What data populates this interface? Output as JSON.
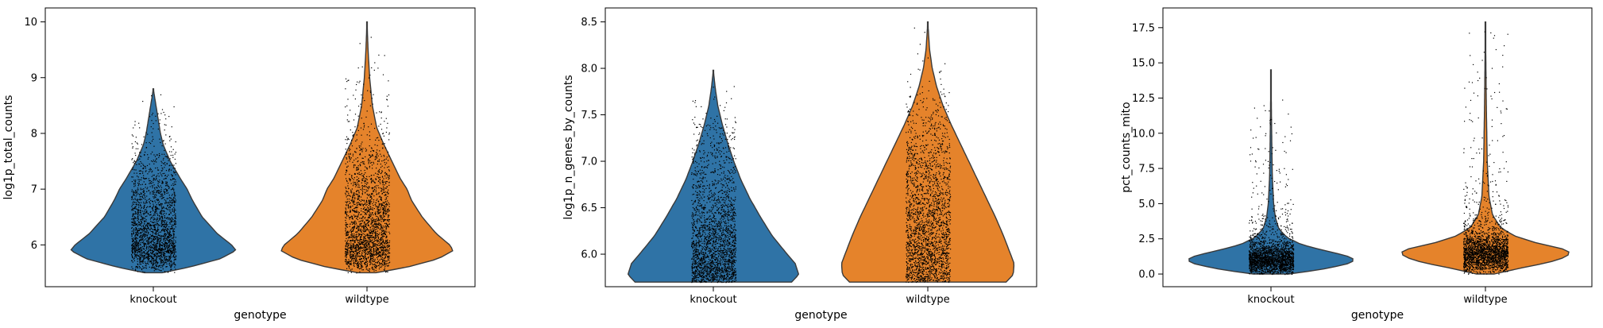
{
  "chart_data": [
    {
      "type": "violin",
      "xlabel": "genotype",
      "ylabel": "log1p_total_counts",
      "categories": [
        "knockout",
        "wildtype"
      ],
      "colors": [
        "#2f73a6",
        "#e5832b"
      ],
      "ylim": [
        5.25,
        10.25
      ],
      "yticks": [
        {
          "value": 6,
          "label": "6"
        },
        {
          "value": 7,
          "label": "7"
        },
        {
          "value": 8,
          "label": "8"
        },
        {
          "value": 9,
          "label": "9"
        },
        {
          "value": 10,
          "label": "10"
        }
      ],
      "series": [
        {
          "category": "knockout",
          "min": 5.5,
          "max": 8.8,
          "jitter_max": 8.7,
          "profile": [
            [
              5.5,
              0.1
            ],
            [
              5.6,
              0.4
            ],
            [
              5.75,
              0.75
            ],
            [
              5.9,
              0.93
            ],
            [
              6.0,
              0.88
            ],
            [
              6.2,
              0.72
            ],
            [
              6.5,
              0.55
            ],
            [
              6.8,
              0.44
            ],
            [
              7.0,
              0.38
            ],
            [
              7.2,
              0.3
            ],
            [
              7.5,
              0.19
            ],
            [
              7.8,
              0.11
            ],
            [
              8.0,
              0.08
            ],
            [
              8.3,
              0.05
            ],
            [
              8.6,
              0.02
            ],
            [
              8.8,
              0.0
            ]
          ]
        },
        {
          "category": "wildtype",
          "min": 5.5,
          "max": 10.0,
          "jitter_max": 9.9,
          "profile": [
            [
              5.5,
              0.1
            ],
            [
              5.6,
              0.45
            ],
            [
              5.75,
              0.8
            ],
            [
              5.9,
              0.97
            ],
            [
              6.0,
              0.93
            ],
            [
              6.2,
              0.78
            ],
            [
              6.5,
              0.62
            ],
            [
              6.8,
              0.5
            ],
            [
              7.0,
              0.45
            ],
            [
              7.2,
              0.37
            ],
            [
              7.5,
              0.28
            ],
            [
              7.8,
              0.19
            ],
            [
              8.1,
              0.11
            ],
            [
              8.5,
              0.06
            ],
            [
              9.0,
              0.03
            ],
            [
              9.5,
              0.012
            ],
            [
              10.0,
              0.0
            ]
          ]
        }
      ]
    },
    {
      "type": "violin",
      "xlabel": "genotype",
      "ylabel": "log1p_n_genes_by_counts",
      "categories": [
        "knockout",
        "wildtype"
      ],
      "colors": [
        "#2f73a6",
        "#e5832b"
      ],
      "ylim": [
        5.65,
        8.65
      ],
      "yticks": [
        {
          "value": 6.0,
          "label": "6.0"
        },
        {
          "value": 6.5,
          "label": "6.5"
        },
        {
          "value": 7.0,
          "label": "7.0"
        },
        {
          "value": 7.5,
          "label": "7.5"
        },
        {
          "value": 8.0,
          "label": "8.0"
        },
        {
          "value": 8.5,
          "label": "8.5"
        }
      ],
      "series": [
        {
          "category": "knockout",
          "min": 5.7,
          "max": 7.98,
          "jitter_max": 7.9,
          "profile": [
            [
              5.7,
              0.88
            ],
            [
              5.78,
              0.96
            ],
            [
              5.9,
              0.92
            ],
            [
              6.0,
              0.83
            ],
            [
              6.2,
              0.66
            ],
            [
              6.4,
              0.53
            ],
            [
              6.6,
              0.41
            ],
            [
              6.8,
              0.31
            ],
            [
              7.0,
              0.23
            ],
            [
              7.2,
              0.16
            ],
            [
              7.4,
              0.1
            ],
            [
              7.6,
              0.05
            ],
            [
              7.8,
              0.02
            ],
            [
              7.98,
              0.0
            ]
          ]
        },
        {
          "category": "wildtype",
          "min": 5.7,
          "max": 8.5,
          "jitter_max": 8.45,
          "profile": [
            [
              5.7,
              0.88
            ],
            [
              5.78,
              0.96
            ],
            [
              5.9,
              0.97
            ],
            [
              6.0,
              0.93
            ],
            [
              6.2,
              0.85
            ],
            [
              6.4,
              0.76
            ],
            [
              6.6,
              0.66
            ],
            [
              6.8,
              0.56
            ],
            [
              7.0,
              0.46
            ],
            [
              7.2,
              0.36
            ],
            [
              7.4,
              0.26
            ],
            [
              7.6,
              0.17
            ],
            [
              7.8,
              0.1
            ],
            [
              8.0,
              0.05
            ],
            [
              8.2,
              0.02
            ],
            [
              8.5,
              0.0
            ]
          ]
        }
      ]
    },
    {
      "type": "violin",
      "xlabel": "genotype",
      "ylabel": "pct_counts_mito",
      "categories": [
        "knockout",
        "wildtype"
      ],
      "colors": [
        "#2f73a6",
        "#e5832b"
      ],
      "ylim": [
        -0.9,
        18.9
      ],
      "yticks": [
        {
          "value": 0,
          "label": "0.0"
        },
        {
          "value": 2.5,
          "label": "2.5"
        },
        {
          "value": 5,
          "label": "5.0"
        },
        {
          "value": 7.5,
          "label": "7.5"
        },
        {
          "value": 10,
          "label": "10.0"
        },
        {
          "value": 12.5,
          "label": "12.5"
        },
        {
          "value": 15,
          "label": "15.0"
        },
        {
          "value": 17.5,
          "label": "17.5"
        }
      ],
      "series": [
        {
          "category": "knockout",
          "min": 0.0,
          "max": 14.5,
          "jitter_max": 12.5,
          "profile": [
            [
              0.0,
              0.2
            ],
            [
              0.3,
              0.55
            ],
            [
              0.7,
              0.85
            ],
            [
              1.0,
              0.95
            ],
            [
              1.3,
              0.85
            ],
            [
              1.7,
              0.58
            ],
            [
              2.1,
              0.34
            ],
            [
              2.6,
              0.18
            ],
            [
              3.2,
              0.09
            ],
            [
              4.0,
              0.05
            ],
            [
              5.0,
              0.03
            ],
            [
              7.0,
              0.015
            ],
            [
              10.0,
              0.008
            ],
            [
              14.5,
              0.0
            ]
          ]
        },
        {
          "category": "wildtype",
          "min": 0.0,
          "max": 17.9,
          "jitter_max": 17.8,
          "profile": [
            [
              0.0,
              0.1
            ],
            [
              0.4,
              0.38
            ],
            [
              0.8,
              0.7
            ],
            [
              1.2,
              0.9
            ],
            [
              1.5,
              0.96
            ],
            [
              1.8,
              0.86
            ],
            [
              2.2,
              0.58
            ],
            [
              2.7,
              0.33
            ],
            [
              3.3,
              0.17
            ],
            [
              4.2,
              0.08
            ],
            [
              5.5,
              0.04
            ],
            [
              8.0,
              0.02
            ],
            [
              12.0,
              0.01
            ],
            [
              17.9,
              0.0
            ]
          ]
        }
      ]
    }
  ]
}
